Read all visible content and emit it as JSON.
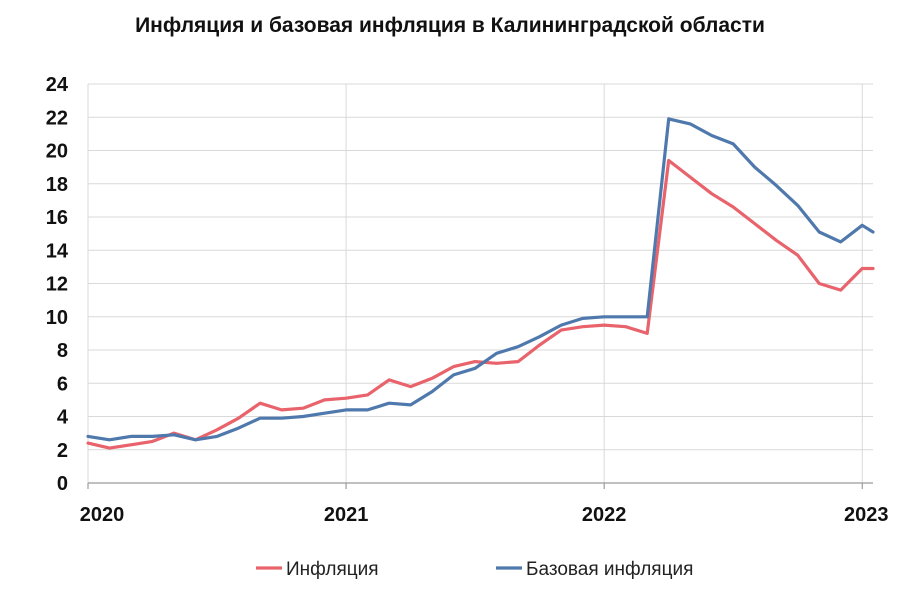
{
  "chart_data": {
    "type": "line",
    "title": "Инфляция и базовая инфляция в Калининградской области",
    "xlabel": "",
    "ylabel": "",
    "ylim": [
      0,
      24
    ],
    "yticks": [
      0,
      2,
      4,
      6,
      8,
      10,
      12,
      14,
      16,
      18,
      20,
      22,
      24
    ],
    "x_ticks": [
      {
        "label": "2020",
        "month": 0
      },
      {
        "label": "2021",
        "month": 12
      },
      {
        "label": "2022",
        "month": 24
      },
      {
        "label": "2023",
        "month": 36
      }
    ],
    "x_range": [
      0,
      36.5
    ],
    "grid": true,
    "legend_position": "bottom",
    "series": [
      {
        "name": "Инфляция",
        "color": "#e8636b",
        "months": [
          0,
          1,
          2,
          3,
          4,
          5,
          6,
          7,
          8,
          9,
          10,
          11,
          12,
          13,
          14,
          15,
          16,
          17,
          18,
          19,
          20,
          21,
          22,
          23,
          24,
          25,
          26,
          27,
          28,
          29,
          30,
          31,
          32,
          33,
          34,
          35,
          36,
          36.5
        ],
        "values": [
          2.4,
          2.1,
          2.3,
          2.5,
          3.0,
          2.6,
          3.2,
          3.9,
          4.8,
          4.4,
          4.5,
          5.0,
          5.1,
          5.3,
          6.2,
          5.8,
          6.3,
          7.0,
          7.3,
          7.2,
          7.3,
          8.3,
          9.2,
          9.4,
          9.5,
          9.4,
          9.0,
          19.4,
          18.4,
          17.4,
          16.6,
          15.6,
          14.6,
          13.7,
          12.0,
          11.6,
          12.9,
          12.9
        ]
      },
      {
        "name": "Базовая инфляция",
        "color": "#4f79ad",
        "months": [
          0,
          1,
          2,
          3,
          4,
          5,
          6,
          7,
          8,
          9,
          10,
          11,
          12,
          13,
          14,
          15,
          16,
          17,
          18,
          19,
          20,
          21,
          22,
          23,
          24,
          25,
          26,
          27,
          28,
          29,
          30,
          31,
          32,
          33,
          34,
          35,
          36,
          36.5
        ],
        "values": [
          2.8,
          2.6,
          2.8,
          2.8,
          2.9,
          2.6,
          2.8,
          3.3,
          3.9,
          3.9,
          4.0,
          4.2,
          4.4,
          4.4,
          4.8,
          4.7,
          5.5,
          6.5,
          6.9,
          7.8,
          8.2,
          8.8,
          9.5,
          9.9,
          10.0,
          10.0,
          10.0,
          21.9,
          21.6,
          20.9,
          20.4,
          19.0,
          17.9,
          16.7,
          15.1,
          14.5,
          15.5,
          15.1
        ]
      }
    ]
  }
}
